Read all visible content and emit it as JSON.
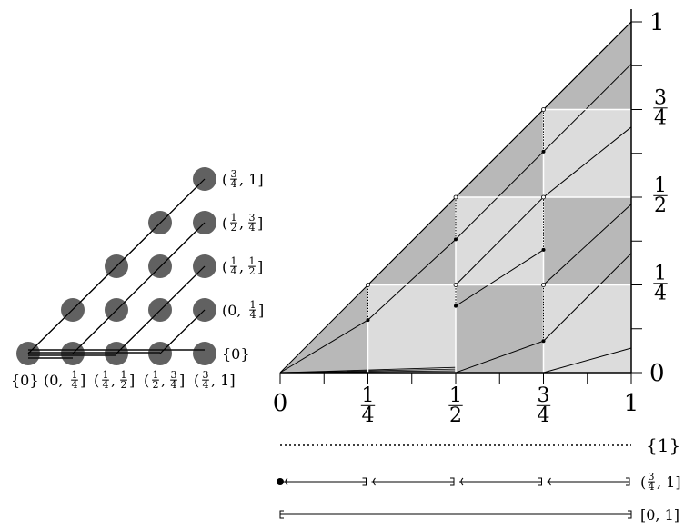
{
  "left_diagram": {
    "grid_rows": 5,
    "dot_color": "#595959",
    "row_labels": [
      {
        "num": "3",
        "den": "4",
        "pre": "(",
        "post": ", 1]"
      },
      {
        "pre": "(",
        "num1": "1",
        "den1": "2",
        "mid": ",",
        "num2": "3",
        "den2": "4",
        "post": "]"
      },
      {
        "pre": "(",
        "num1": "1",
        "den1": "4",
        "mid": ",",
        "num2": "1",
        "den2": "2",
        "post": "]"
      },
      {
        "pre": "(0, ",
        "num": "1",
        "den": "4",
        "post": "]"
      },
      {
        "text": "{0}"
      }
    ],
    "column_labels": [
      {
        "text": "{0}"
      },
      {
        "pre": "(0, ",
        "num": "1",
        "den": "4",
        "post": "]"
      },
      {
        "pre": "(",
        "num1": "1",
        "den1": "4",
        "mid": ",",
        "num2": "1",
        "den2": "2",
        "post": "]"
      },
      {
        "pre": "(",
        "num1": "1",
        "den1": "2",
        "mid": ",",
        "num2": "3",
        "den2": "4",
        "post": "]"
      },
      {
        "pre": "(",
        "num": "3",
        "den": "4",
        "post": ", 1]"
      }
    ]
  },
  "right_diagram": {
    "colors": {
      "dark": "#b8b8b8",
      "light": "#dcdcdc",
      "line": "#000000"
    },
    "x_ticks": [
      {
        "value": 0,
        "text": "0"
      },
      {
        "value": 0.25,
        "num": "1",
        "den": "4"
      },
      {
        "value": 0.5,
        "num": "1",
        "den": "2"
      },
      {
        "value": 0.75,
        "num": "3",
        "den": "4"
      },
      {
        "value": 1,
        "text": "1"
      }
    ],
    "y_ticks": [
      {
        "value": 0,
        "text": "0"
      },
      {
        "value": 0.25,
        "num": "1",
        "den": "4"
      },
      {
        "value": 0.5,
        "num": "1",
        "den": "2"
      },
      {
        "value": 0.75,
        "num": "3",
        "den": "4"
      },
      {
        "value": 1,
        "text": "1"
      }
    ]
  },
  "bottom_rows": [
    {
      "style": "dotted",
      "label": "{1}"
    },
    {
      "style": "intervals",
      "label_pre": "(",
      "num": "3",
      "den": "4",
      "label_post": ", 1]"
    },
    {
      "style": "bracket",
      "label": "[0, 1]"
    }
  ]
}
